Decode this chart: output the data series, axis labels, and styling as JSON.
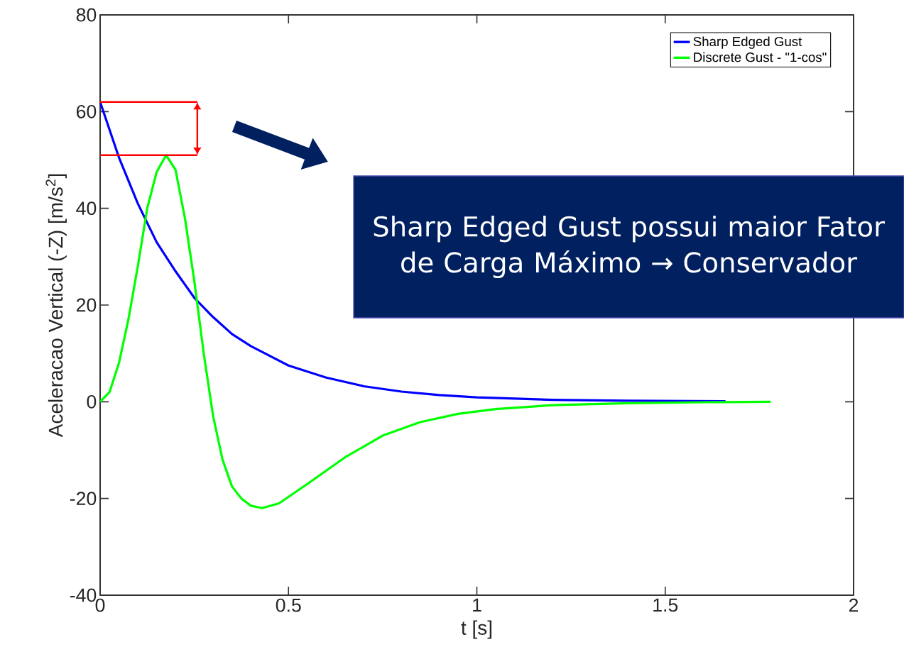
{
  "chart_data": {
    "type": "line",
    "xlabel": "t [s]",
    "ylabel": "Aceleracao Vertical (-Z) [m/s$^{2}$]",
    "xlim": [
      0,
      2
    ],
    "ylim": [
      -40,
      80
    ],
    "xticks": [
      0,
      0.5,
      1,
      1.5,
      2
    ],
    "yticks": [
      -40,
      -20,
      0,
      20,
      40,
      60,
      80
    ],
    "legend": "top right",
    "marker": "none",
    "line_style": "solid",
    "annotations": [
      "Sharp Edged Gust possui maior Fator de Carga Máximo → Conservador"
    ],
    "series": [
      {
        "name": "Sharp Edged Gust",
        "color": "#0000ff",
        "x": [
          0,
          0.05,
          0.1,
          0.15,
          0.2,
          0.25,
          0.3,
          0.35,
          0.4,
          0.5,
          0.6,
          0.7,
          0.8,
          0.9,
          1.0,
          1.2,
          1.4,
          1.66
        ],
        "values": [
          62,
          50.5,
          41,
          33,
          27,
          21.5,
          17.5,
          14,
          11.5,
          7.5,
          5,
          3.2,
          2.1,
          1.4,
          0.9,
          0.4,
          0.2,
          0.1
        ]
      },
      {
        "name": "Discrete Gust - \"1-cos\"",
        "color": "#00ff00",
        "x": [
          0,
          0.025,
          0.05,
          0.075,
          0.1,
          0.125,
          0.15,
          0.175,
          0.2,
          0.225,
          0.25,
          0.275,
          0.3,
          0.325,
          0.35,
          0.375,
          0.4,
          0.43,
          0.475,
          0.55,
          0.65,
          0.75,
          0.85,
          0.95,
          1.05,
          1.2,
          1.4,
          1.6,
          1.78
        ],
        "values": [
          0,
          2,
          8,
          17,
          28,
          40,
          47.5,
          51,
          48,
          38,
          25,
          10,
          -3,
          -12,
          -17.5,
          -20,
          -21.5,
          -22,
          -21,
          -17,
          -11.5,
          -7,
          -4.2,
          -2.5,
          -1.5,
          -0.7,
          -0.3,
          -0.1,
          0
        ]
      }
    ]
  }
}
